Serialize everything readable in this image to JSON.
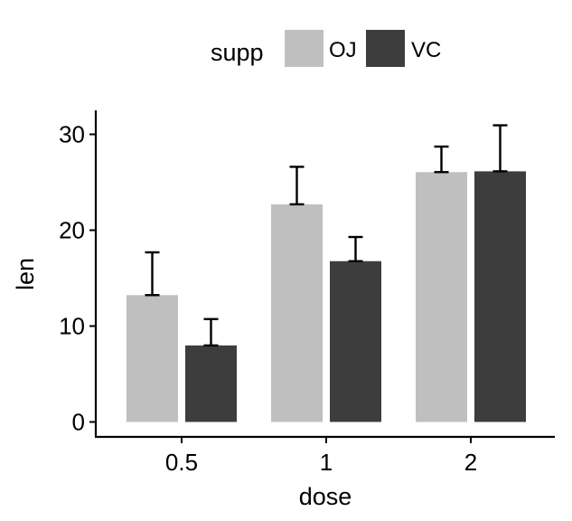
{
  "chart_data": {
    "type": "bar",
    "categories": [
      "0.5",
      "1",
      "2"
    ],
    "xlabel": "dose",
    "ylabel": "len",
    "ylim": [
      0,
      32
    ],
    "yticks": [
      0,
      10,
      20,
      30
    ],
    "legend": {
      "title": "supp",
      "placement": "top"
    },
    "grid": false,
    "series": [
      {
        "name": "OJ",
        "color": "#bfbfbf",
        "values": [
          13.23,
          22.7,
          26.06
        ],
        "errors": [
          4.46,
          3.91,
          2.66
        ]
      },
      {
        "name": "VC",
        "color": "#3d3d3d",
        "values": [
          7.98,
          16.77,
          26.14
        ],
        "errors": [
          2.75,
          2.52,
          4.8
        ]
      }
    ]
  }
}
